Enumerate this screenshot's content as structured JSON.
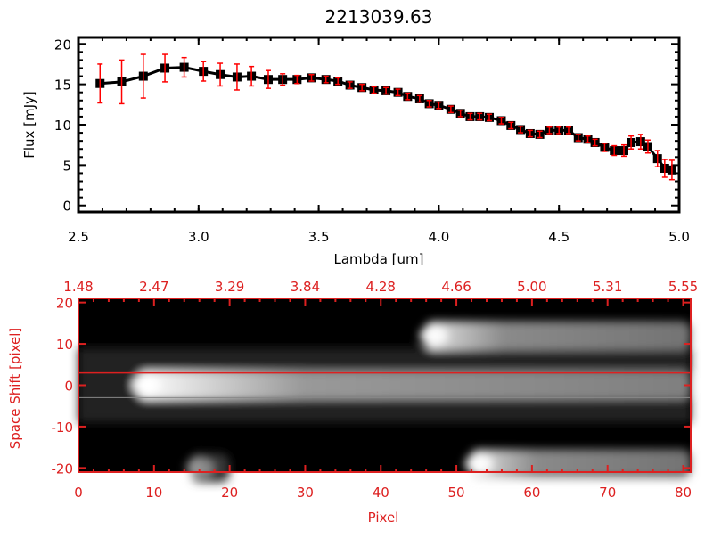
{
  "chart_data": [
    {
      "type": "line",
      "title": "2213039.63",
      "xlabel": "Lambda [um]",
      "ylabel": "Flux [mJy]",
      "xlim": [
        2.5,
        5.0
      ],
      "ylim": [
        -0.8,
        20.8
      ],
      "xticks": [
        "2.5",
        "3.0",
        "3.5",
        "4.0",
        "4.5",
        "5.0"
      ],
      "xtick_values": [
        2.5,
        3.0,
        3.5,
        4.0,
        4.5,
        5.0
      ],
      "yticks": [
        "0",
        "5",
        "10",
        "15",
        "20"
      ],
      "ytick_values": [
        0,
        5,
        10,
        15,
        20
      ],
      "marker": "square",
      "line_color": "#000000",
      "errorbar_color": "#ff0000",
      "x": [
        2.59,
        2.68,
        2.77,
        2.86,
        2.94,
        3.02,
        3.09,
        3.16,
        3.22,
        3.29,
        3.35,
        3.41,
        3.47,
        3.53,
        3.58,
        3.63,
        3.68,
        3.73,
        3.78,
        3.83,
        3.87,
        3.92,
        3.96,
        4.0,
        4.05,
        4.09,
        4.13,
        4.17,
        4.21,
        4.26,
        4.3,
        4.34,
        4.38,
        4.42,
        4.46,
        4.5,
        4.54,
        4.58,
        4.62,
        4.65,
        4.69,
        4.73,
        4.77,
        4.8,
        4.84,
        4.87,
        4.91,
        4.94,
        4.97
      ],
      "y": [
        15.1,
        15.3,
        16.0,
        17.0,
        17.1,
        16.6,
        16.2,
        15.9,
        16.0,
        15.6,
        15.6,
        15.6,
        15.8,
        15.6,
        15.4,
        14.9,
        14.6,
        14.3,
        14.2,
        14.0,
        13.5,
        13.2,
        12.6,
        12.4,
        11.9,
        11.4,
        11.0,
        11.0,
        10.9,
        10.5,
        9.9,
        9.4,
        8.9,
        8.8,
        9.3,
        9.3,
        9.3,
        8.4,
        8.2,
        7.8,
        7.2,
        6.8,
        6.8,
        7.8,
        7.9,
        7.3,
        5.8,
        4.6,
        4.4
      ],
      "yerr": [
        2.4,
        2.7,
        2.7,
        1.7,
        1.2,
        1.2,
        1.4,
        1.6,
        1.2,
        1.1,
        0.7,
        0.5,
        0.4,
        0.4,
        0.4,
        0.4,
        0.4,
        0.4,
        0.4,
        0.4,
        0.4,
        0.4,
        0.4,
        0.4,
        0.4,
        0.4,
        0.4,
        0.4,
        0.4,
        0.4,
        0.4,
        0.4,
        0.4,
        0.4,
        0.4,
        0.4,
        0.4,
        0.4,
        0.4,
        0.4,
        0.5,
        0.6,
        0.7,
        0.8,
        0.9,
        0.8,
        1.0,
        1.1,
        1.2
      ]
    },
    {
      "type": "heatmap",
      "xlabel": "Pixel",
      "ylabel": "Space Shift [pixel]",
      "xlim": [
        0,
        81
      ],
      "ylim": [
        -21,
        21
      ],
      "xticks": [
        "0",
        "10",
        "20",
        "30",
        "40",
        "50",
        "60",
        "70",
        "80"
      ],
      "xtick_values": [
        0,
        10,
        20,
        30,
        40,
        50,
        60,
        70,
        80
      ],
      "yticks": [
        "20",
        "10",
        "0",
        "-10",
        "-20"
      ],
      "ytick_values": [
        20,
        10,
        0,
        -10,
        -20
      ],
      "top_xticks": [
        "1.48",
        "2.47",
        "3.29",
        "3.84",
        "4.28",
        "4.66",
        "5.00",
        "5.31",
        "5.55"
      ],
      "axis_color": "#dd2020",
      "red_line_shift": 3,
      "gray_line_shift": -3,
      "sources": [
        {
          "name": "central trace",
          "peak_pixel": 9,
          "shift": 0,
          "from": 2,
          "to": 81,
          "intensity": 1.0
        },
        {
          "name": "upper trace",
          "peak_pixel": 47,
          "shift": 12,
          "from": 43,
          "to": 81,
          "intensity": 0.9
        },
        {
          "name": "lower trace",
          "peak_pixel": 53,
          "shift": -19,
          "from": 46,
          "to": 81,
          "intensity": 0.9
        },
        {
          "name": "faint left blob",
          "peak_pixel": 16,
          "shift": -20,
          "from": 12,
          "to": 20,
          "intensity": 0.4
        }
      ]
    }
  ]
}
